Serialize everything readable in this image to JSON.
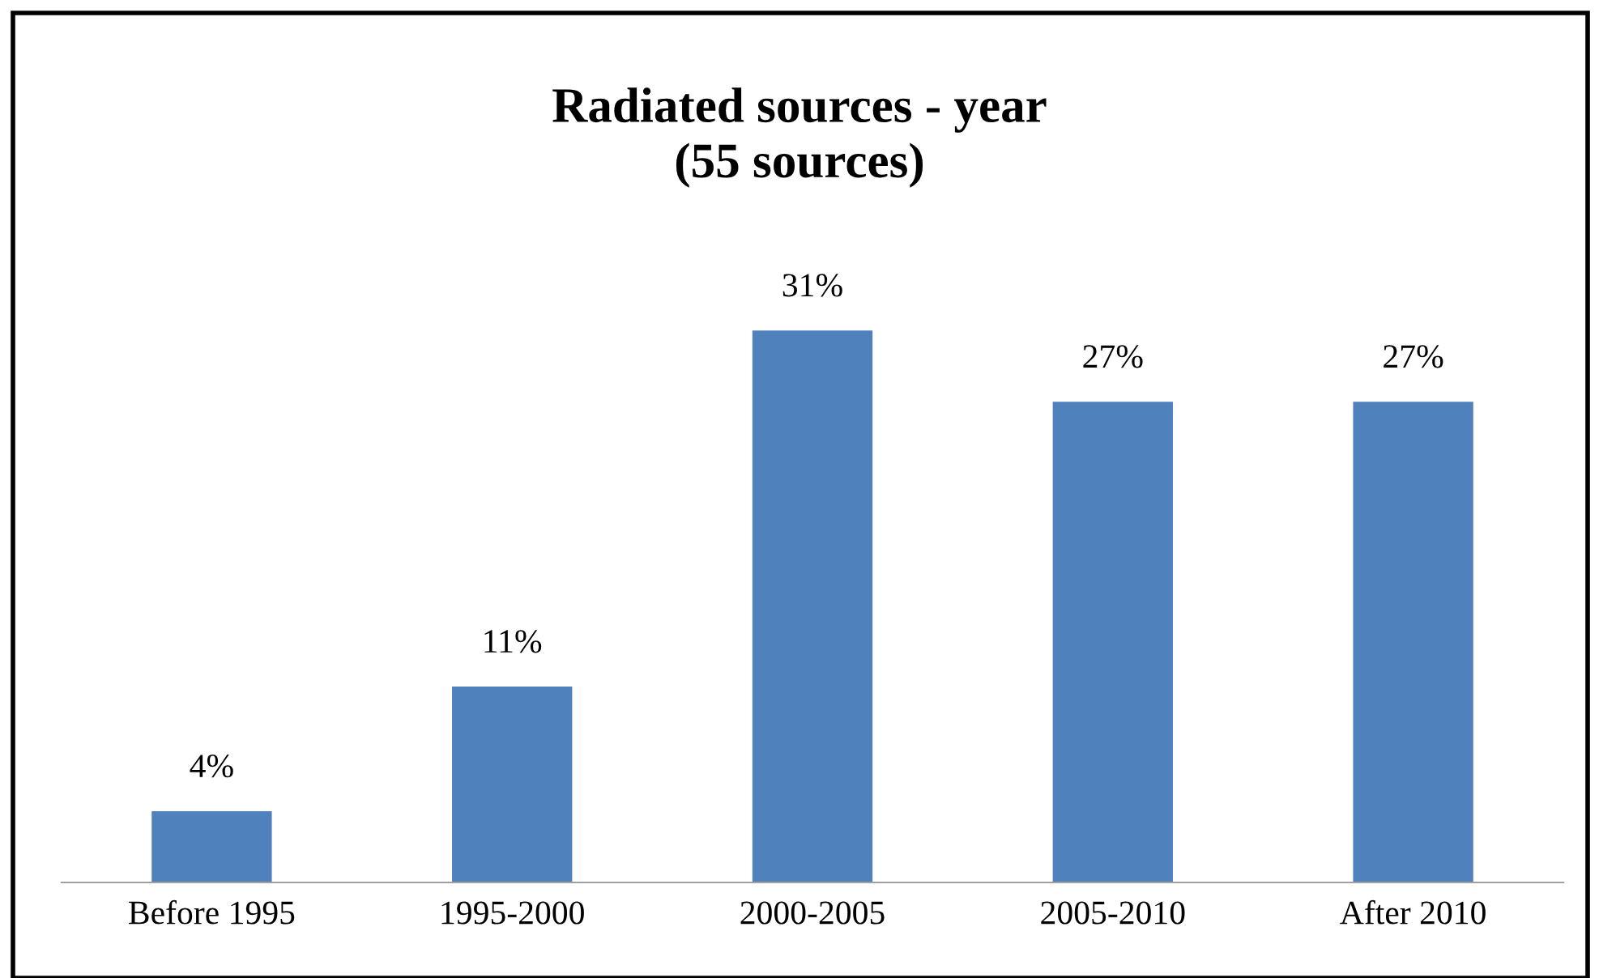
{
  "chart_data": {
    "type": "bar",
    "title": "Radiated sources - year\n(55 sources)",
    "categories": [
      "Before 1995",
      "1995-2000",
      "2000-2005",
      "2005-2010",
      "After 2010"
    ],
    "values": [
      4,
      11,
      31,
      27,
      27
    ],
    "color": "#4f81bd",
    "data_labels": true,
    "grid": false,
    "legend": false,
    "value_labels": [
      "4%",
      "11%",
      "31%",
      "27%",
      "27%"
    ]
  }
}
